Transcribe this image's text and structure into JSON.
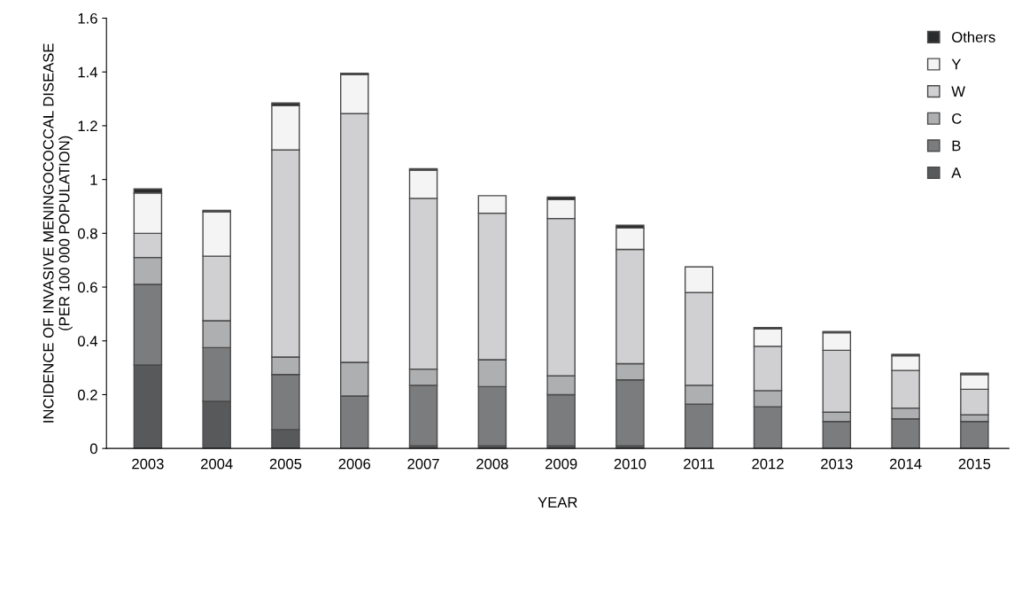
{
  "chart_data": {
    "type": "bar",
    "stacked": true,
    "xlabel": "YEAR",
    "ylabel": "INCIDENCE OF INVASIVE MENINGOCOCCAL DISEASE\n(PER 100 000 POPULATION)",
    "categories": [
      "2003",
      "2004",
      "2005",
      "2006",
      "2007",
      "2008",
      "2009",
      "2010",
      "2011",
      "2012",
      "2013",
      "2014",
      "2015"
    ],
    "series": [
      {
        "name": "A",
        "color": "#58595b",
        "values": [
          0.31,
          0.175,
          0.07,
          null,
          0.01,
          0.01,
          0.01,
          0.01,
          0,
          0,
          0,
          0,
          0
        ]
      },
      {
        "name": "B",
        "color": "#7b7c7e",
        "values": [
          0.3,
          0.2,
          0.205,
          0.195,
          0.225,
          0.22,
          0.19,
          0.245,
          0.165,
          0.155,
          0.1,
          0.11,
          0.1
        ]
      },
      {
        "name": "C",
        "color": "#aeafb1",
        "values": [
          0.1,
          0.1,
          0.065,
          0.125,
          0.06,
          0.1,
          0.07,
          0.06,
          0.07,
          0.06,
          0.035,
          0.04,
          0.025
        ]
      },
      {
        "name": "W",
        "color": "#d0d0d2",
        "values": [
          0.09,
          0.24,
          0.77,
          0.925,
          0.635,
          0.545,
          0.585,
          0.425,
          0.345,
          0.165,
          0.23,
          0.14,
          0.095
        ]
      },
      {
        "name": "Y",
        "color": "#f4f4f4",
        "values": [
          0.15,
          0.165,
          0.165,
          0.145,
          0.105,
          0.065,
          0.07,
          0.08,
          0.095,
          0.065,
          0.065,
          0.055,
          0.055
        ]
      },
      {
        "name": "Others",
        "color": "#2a2b2d",
        "values": [
          0.015,
          0.005,
          0.01,
          0.005,
          0.005,
          0,
          0.01,
          0.01,
          0,
          0.005,
          0.005,
          0.005,
          0.005
        ]
      }
    ],
    "ylim": [
      0,
      1.6
    ],
    "yticks": [
      0,
      0.2,
      0.4,
      0.6,
      0.8,
      1,
      1.2,
      1.4,
      1.6
    ],
    "grid": false,
    "legend": "top right"
  }
}
